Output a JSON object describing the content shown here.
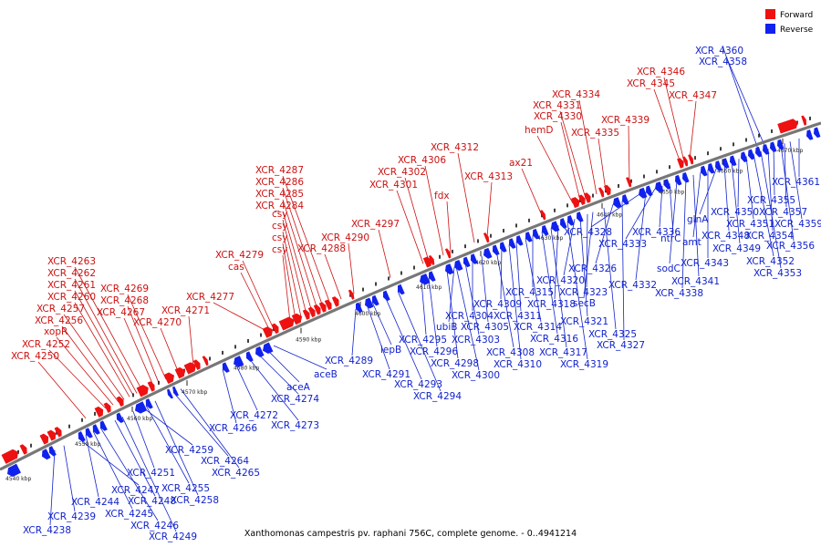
{
  "legend": {
    "forward": "Forward",
    "reverse": "Reverse"
  },
  "caption": "Xanthomonas campestris pv. raphani 756C, complete genome. - 0..4941214",
  "colors": {
    "forward": "#ee1111",
    "reverse": "#1122ee",
    "backbone": "#777777"
  },
  "ticks": [
    "4540 kbp",
    "4550 kbp",
    "4560 kbp",
    "4570 kbp",
    "4580 kbp",
    "4590 kbp",
    "4600 kbp",
    "4610 kbp",
    "4620 kbp",
    "4630 kbp",
    "4640 kbp",
    "4650 kbp",
    "4660 kbp",
    "4670 kbp"
  ],
  "forward_labels": [
    "XCR_4250",
    "XCR_4252",
    "xopR",
    "XCR_4256",
    "XCR_4257",
    "XCR_4260",
    "XCR_4261",
    "XCR_4262",
    "XCR_4263",
    "XCR_4267",
    "XCR_4268",
    "XCR_4269",
    "XCR_4270",
    "XCR_4271",
    "XCR_4277",
    "cas",
    "XCR_4279",
    "csy",
    "csy",
    "csy",
    "csy",
    "XCR_4284",
    "XCR_4285",
    "XCR_4286",
    "XCR_4287",
    "XCR_4288",
    "XCR_4290",
    "XCR_4297",
    "XCR_4301",
    "XCR_4302",
    "XCR_4306",
    "fdx",
    "XCR_4312",
    "XCR_4313",
    "ax21",
    "hemD",
    "XCR_4330",
    "XCR_4331",
    "XCR_4334",
    "XCR_4335",
    "XCR_4339",
    "XCR_4345",
    "XCR_4346",
    "XCR_4347"
  ],
  "reverse_labels": [
    "XCR_4238",
    "XCR_4239",
    "XCR_4244",
    "XCR_4245",
    "XCR_4246",
    "XCR_4247",
    "XCR_4248",
    "XCR_4249",
    "XCR_4251",
    "XCR_4255",
    "XCR_4258",
    "XCR_4259",
    "XCR_4264",
    "XCR_4265",
    "XCR_4266",
    "XCR_4272",
    "XCR_4273",
    "XCR_4274",
    "aceA",
    "aceB",
    "XCR_4289",
    "XCR_4291",
    "lepB",
    "XCR_4293",
    "XCR_4294",
    "XCR_4295",
    "XCR_4296",
    "XCR_4298",
    "XCR_4300",
    "ubiB",
    "XCR_4303",
    "XCR_4304",
    "XCR_4305",
    "XCR_4308",
    "XCR_4309",
    "XCR_4310",
    "XCR_4311",
    "XCR_4314",
    "XCR_4315",
    "XCR_4316",
    "XCR_4317",
    "XCR_4318",
    "XCR_4319",
    "XCR_4320",
    "XCR_4321",
    "XCR_4323",
    "secB",
    "XCR_4325",
    "XCR_4326",
    "XCR_4327",
    "XCR_4328",
    "XCR_4332",
    "XCR_4333",
    "XCR_4336",
    "ntrC",
    "sodC",
    "XCR_4338",
    "XCR_4341",
    "amt",
    "XCR_4343",
    "glnA",
    "XCR_4348",
    "XCR_4349",
    "XCR_4350",
    "XCR_4351",
    "XCR_4352",
    "XCR_4353",
    "XCR_4354",
    "XCR_4355",
    "XCR_4356",
    "XCR_4357",
    "XCR_4358",
    "XCR_4359",
    "XCR_4360",
    "XCR_4361"
  ]
}
